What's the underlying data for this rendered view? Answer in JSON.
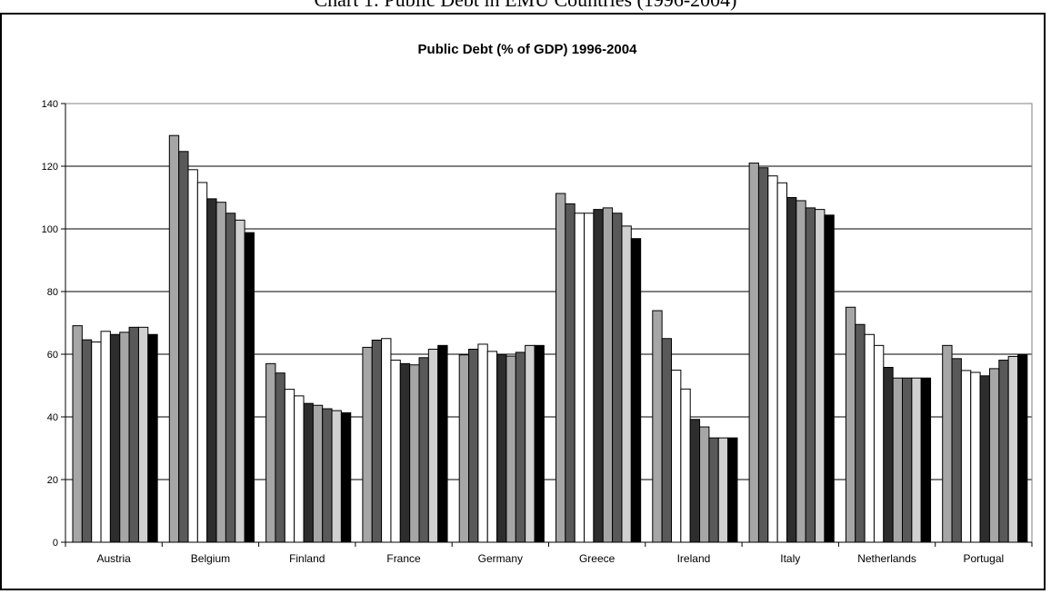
{
  "page_heading": "Chart 1: Public Debt in EMU Countries (1996-2004)",
  "chart_data": {
    "type": "bar",
    "title": "Public Debt (% of GDP) 1996-2004",
    "xlabel": "",
    "ylabel": "",
    "ylim": [
      0,
      140
    ],
    "yticks": [
      0,
      20,
      40,
      60,
      80,
      100,
      120,
      140
    ],
    "grid": true,
    "legend": "none",
    "categories": [
      "Austria",
      "Belgium",
      "Finland",
      "France",
      "Germany",
      "Greece",
      "Ireland",
      "Italy",
      "Netherlands",
      "Portugal"
    ],
    "series": [
      {
        "color": "#a6a6a6",
        "values": [
          69.1,
          129.8,
          57.0,
          62.2,
          59.8,
          111.3,
          73.9,
          121.0,
          75.0,
          62.8
        ]
      },
      {
        "color": "#595959",
        "values": [
          64.6,
          124.7,
          54.0,
          64.5,
          61.6,
          108.0,
          65.0,
          119.5,
          69.5,
          58.6
        ]
      },
      {
        "color": "#ffffff",
        "values": [
          63.9,
          118.9,
          48.8,
          65.0,
          63.2,
          105.0,
          54.9,
          116.9,
          66.3,
          54.8
        ]
      },
      {
        "color": "#ffffff",
        "values": [
          67.3,
          114.8,
          46.7,
          58.1,
          60.9,
          105.0,
          48.9,
          114.7,
          62.8,
          54.2
        ]
      },
      {
        "color": "#2d2d2d",
        "values": [
          66.3,
          109.6,
          44.3,
          57.0,
          59.9,
          106.2,
          39.2,
          110.0,
          55.8,
          53.1
        ]
      },
      {
        "color": "#a6a6a6",
        "values": [
          67.0,
          108.5,
          43.7,
          56.6,
          59.4,
          106.7,
          36.8,
          109.0,
          52.4,
          55.4
        ]
      },
      {
        "color": "#595959",
        "values": [
          68.6,
          105.0,
          42.6,
          58.9,
          60.6,
          105.0,
          33.3,
          106.7,
          52.4,
          58.1
        ]
      },
      {
        "color": "#d0d0d0",
        "values": [
          68.6,
          102.8,
          42.0,
          61.6,
          62.8,
          100.9,
          33.3,
          106.2,
          52.4,
          59.3
        ]
      },
      {
        "color": "#000000",
        "values": [
          66.3,
          98.8,
          41.3,
          62.8,
          62.8,
          96.9,
          33.3,
          104.4,
          52.4,
          59.9
        ]
      }
    ]
  }
}
